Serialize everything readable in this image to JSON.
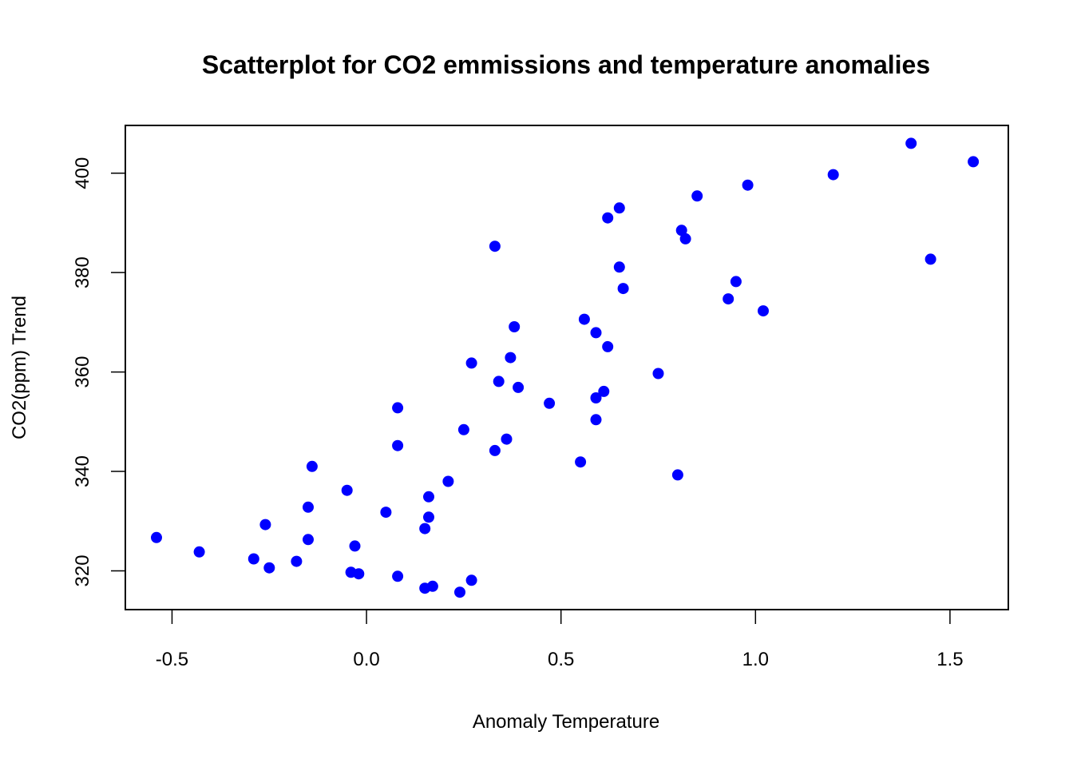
{
  "chart_data": {
    "type": "scatter",
    "title": "Scatterplot for CO2 emmissions and temperature anomalies",
    "xlabel": "Anomaly Temperature",
    "ylabel": "CO2(ppm) Trend",
    "xlim": [
      -0.62,
      1.65
    ],
    "ylim": [
      312.2,
      409.6
    ],
    "x_ticks": [
      -0.5,
      0.0,
      0.5,
      1.0,
      1.5
    ],
    "x_tick_labels": [
      "-0.5",
      "0.0",
      "0.5",
      "1.0",
      "1.5"
    ],
    "y_ticks": [
      320,
      340,
      360,
      380,
      400
    ],
    "y_tick_labels": [
      "320",
      "340",
      "360",
      "380",
      "400"
    ],
    "grid": false,
    "legend": null,
    "marker_color": "#0000ff",
    "points": [
      {
        "x": -0.54,
        "y": 326.7
      },
      {
        "x": -0.43,
        "y": 323.8
      },
      {
        "x": -0.29,
        "y": 322.4
      },
      {
        "x": -0.26,
        "y": 329.3
      },
      {
        "x": -0.25,
        "y": 320.6
      },
      {
        "x": -0.18,
        "y": 321.9
      },
      {
        "x": -0.15,
        "y": 326.3
      },
      {
        "x": -0.15,
        "y": 332.8
      },
      {
        "x": -0.14,
        "y": 341.0
      },
      {
        "x": -0.05,
        "y": 336.2
      },
      {
        "x": -0.04,
        "y": 319.7
      },
      {
        "x": -0.03,
        "y": 325.0
      },
      {
        "x": -0.02,
        "y": 319.4
      },
      {
        "x": 0.05,
        "y": 331.8
      },
      {
        "x": 0.08,
        "y": 318.9
      },
      {
        "x": 0.08,
        "y": 345.2
      },
      {
        "x": 0.08,
        "y": 352.8
      },
      {
        "x": 0.15,
        "y": 316.5
      },
      {
        "x": 0.15,
        "y": 328.5
      },
      {
        "x": 0.16,
        "y": 330.8
      },
      {
        "x": 0.16,
        "y": 334.9
      },
      {
        "x": 0.17,
        "y": 316.9
      },
      {
        "x": 0.21,
        "y": 338.0
      },
      {
        "x": 0.24,
        "y": 315.7
      },
      {
        "x": 0.25,
        "y": 348.4
      },
      {
        "x": 0.27,
        "y": 318.1
      },
      {
        "x": 0.27,
        "y": 361.8
      },
      {
        "x": 0.33,
        "y": 344.2
      },
      {
        "x": 0.33,
        "y": 385.3
      },
      {
        "x": 0.34,
        "y": 358.1
      },
      {
        "x": 0.36,
        "y": 346.5
      },
      {
        "x": 0.37,
        "y": 362.9
      },
      {
        "x": 0.38,
        "y": 369.1
      },
      {
        "x": 0.39,
        "y": 356.9
      },
      {
        "x": 0.47,
        "y": 353.7
      },
      {
        "x": 0.55,
        "y": 341.9
      },
      {
        "x": 0.56,
        "y": 370.6
      },
      {
        "x": 0.59,
        "y": 350.4
      },
      {
        "x": 0.59,
        "y": 354.8
      },
      {
        "x": 0.59,
        "y": 367.9
      },
      {
        "x": 0.61,
        "y": 356.1
      },
      {
        "x": 0.62,
        "y": 365.1
      },
      {
        "x": 0.62,
        "y": 391.0
      },
      {
        "x": 0.65,
        "y": 381.1
      },
      {
        "x": 0.65,
        "y": 393.0
      },
      {
        "x": 0.66,
        "y": 376.8
      },
      {
        "x": 0.75,
        "y": 359.7
      },
      {
        "x": 0.8,
        "y": 339.3
      },
      {
        "x": 0.81,
        "y": 388.5
      },
      {
        "x": 0.82,
        "y": 386.8
      },
      {
        "x": 0.85,
        "y": 395.4
      },
      {
        "x": 0.93,
        "y": 374.7
      },
      {
        "x": 0.95,
        "y": 378.2
      },
      {
        "x": 0.98,
        "y": 397.6
      },
      {
        "x": 1.02,
        "y": 372.3
      },
      {
        "x": 1.2,
        "y": 399.7
      },
      {
        "x": 1.4,
        "y": 406.0
      },
      {
        "x": 1.45,
        "y": 382.7
      },
      {
        "x": 1.56,
        "y": 402.3
      }
    ]
  }
}
